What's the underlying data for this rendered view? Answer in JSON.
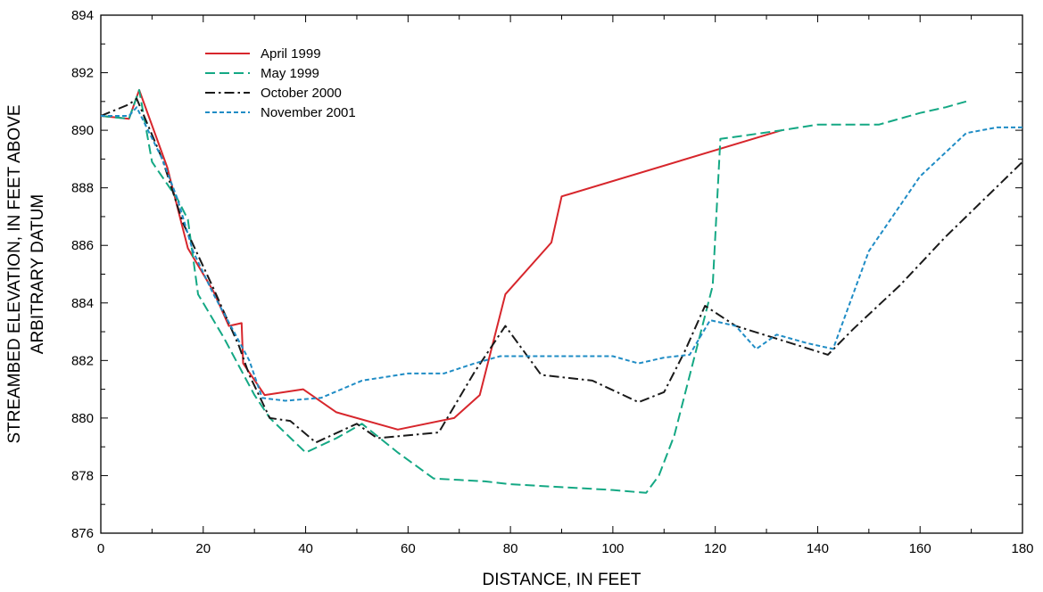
{
  "chart_data": {
    "type": "line",
    "title": "",
    "xlabel": "DISTANCE, IN FEET",
    "ylabel_lines": [
      "STREAMBED ELEVATION, IN FEET ABOVE",
      "ARBITRARY DATUM"
    ],
    "xlim": [
      0,
      180
    ],
    "ylim": [
      876,
      894
    ],
    "xticks": [
      0,
      20,
      40,
      60,
      80,
      100,
      120,
      140,
      160,
      180
    ],
    "yticks": [
      876,
      878,
      880,
      882,
      884,
      886,
      888,
      890,
      892,
      894
    ],
    "grid": false,
    "legend_position": "top-left",
    "series": [
      {
        "name": "April 1999",
        "color": "#d7262c",
        "dash": "solid",
        "points": [
          [
            0,
            890.5
          ],
          [
            5.5,
            890.4
          ],
          [
            7.5,
            891.4
          ],
          [
            13,
            888.7
          ],
          [
            16,
            886.6
          ],
          [
            17,
            885.9
          ],
          [
            22,
            884.4
          ],
          [
            25,
            883.2
          ],
          [
            27.5,
            883.3
          ],
          [
            27.8,
            881.9
          ],
          [
            32,
            880.8
          ],
          [
            39.5,
            881.0
          ],
          [
            46,
            880.2
          ],
          [
            58,
            879.6
          ],
          [
            69,
            880.0
          ],
          [
            74,
            880.8
          ],
          [
            79,
            884.3
          ],
          [
            88,
            886.1
          ],
          [
            90,
            887.7
          ],
          [
            133,
            890.0
          ]
        ]
      },
      {
        "name": "May 1999",
        "color": "#14a884",
        "dash": "long-dash",
        "points": [
          [
            0,
            890.5
          ],
          [
            5.5,
            890.4
          ],
          [
            7.5,
            891.4
          ],
          [
            10,
            888.9
          ],
          [
            15,
            887.6
          ],
          [
            17,
            886.9
          ],
          [
            19,
            884.3
          ],
          [
            24,
            882.8
          ],
          [
            30,
            880.8
          ],
          [
            33,
            880.0
          ],
          [
            40,
            878.8
          ],
          [
            46,
            879.3
          ],
          [
            51,
            879.8
          ],
          [
            58,
            878.8
          ],
          [
            65,
            877.9
          ],
          [
            70,
            877.85
          ],
          [
            75,
            877.8
          ],
          [
            80,
            877.7
          ],
          [
            90,
            877.6
          ],
          [
            100,
            877.5
          ],
          [
            106.5,
            877.4
          ],
          [
            109,
            878.0
          ],
          [
            112,
            879.4
          ],
          [
            119.5,
            884.6
          ],
          [
            121,
            889.7
          ],
          [
            125,
            889.8
          ],
          [
            133,
            890.0
          ],
          [
            140,
            890.2
          ],
          [
            152,
            890.2
          ],
          [
            160,
            890.6
          ],
          [
            165,
            890.8
          ],
          [
            169,
            891.0
          ]
        ]
      },
      {
        "name": "October 2000",
        "color": "#1a1a1a",
        "dash": "dash-dot",
        "points": [
          [
            0,
            890.5
          ],
          [
            5.5,
            890.9
          ],
          [
            7,
            891.1
          ],
          [
            12,
            889.0
          ],
          [
            16,
            886.8
          ],
          [
            22,
            884.5
          ],
          [
            27,
            882.5
          ],
          [
            29,
            881.5
          ],
          [
            33,
            880.0
          ],
          [
            37,
            879.9
          ],
          [
            42,
            879.15
          ],
          [
            50,
            879.8
          ],
          [
            54,
            879.3
          ],
          [
            60,
            879.4
          ],
          [
            66,
            879.5
          ],
          [
            73,
            881.6
          ],
          [
            79,
            883.2
          ],
          [
            86,
            881.5
          ],
          [
            96,
            881.3
          ],
          [
            105,
            880.55
          ],
          [
            110,
            880.9
          ],
          [
            114,
            882.3
          ],
          [
            118,
            883.9
          ],
          [
            124,
            883.2
          ],
          [
            133,
            882.7
          ],
          [
            142,
            882.2
          ],
          [
            147,
            883.1
          ],
          [
            156,
            884.6
          ],
          [
            165,
            886.3
          ],
          [
            180,
            888.9
          ]
        ]
      },
      {
        "name": "November 2001",
        "color": "#1f8cc5",
        "dash": "short-dash",
        "points": [
          [
            0,
            890.5
          ],
          [
            5.5,
            890.5
          ],
          [
            7,
            890.8
          ],
          [
            12,
            889.0
          ],
          [
            15,
            887.6
          ],
          [
            18,
            885.8
          ],
          [
            22,
            884.3
          ],
          [
            26,
            883.0
          ],
          [
            29,
            882.0
          ],
          [
            31.5,
            880.7
          ],
          [
            36,
            880.6
          ],
          [
            43,
            880.7
          ],
          [
            51,
            881.3
          ],
          [
            60,
            881.55
          ],
          [
            67,
            881.55
          ],
          [
            73,
            881.9
          ],
          [
            78,
            882.15
          ],
          [
            100,
            882.15
          ],
          [
            105,
            881.9
          ],
          [
            110,
            882.1
          ],
          [
            115,
            882.2
          ],
          [
            119,
            883.4
          ],
          [
            124,
            883.2
          ],
          [
            128,
            882.4
          ],
          [
            132,
            882.9
          ],
          [
            138,
            882.6
          ],
          [
            143,
            882.4
          ],
          [
            150,
            885.8
          ],
          [
            160,
            888.4
          ],
          [
            169,
            889.9
          ],
          [
            175,
            890.1
          ],
          [
            180,
            890.1
          ]
        ]
      }
    ]
  }
}
